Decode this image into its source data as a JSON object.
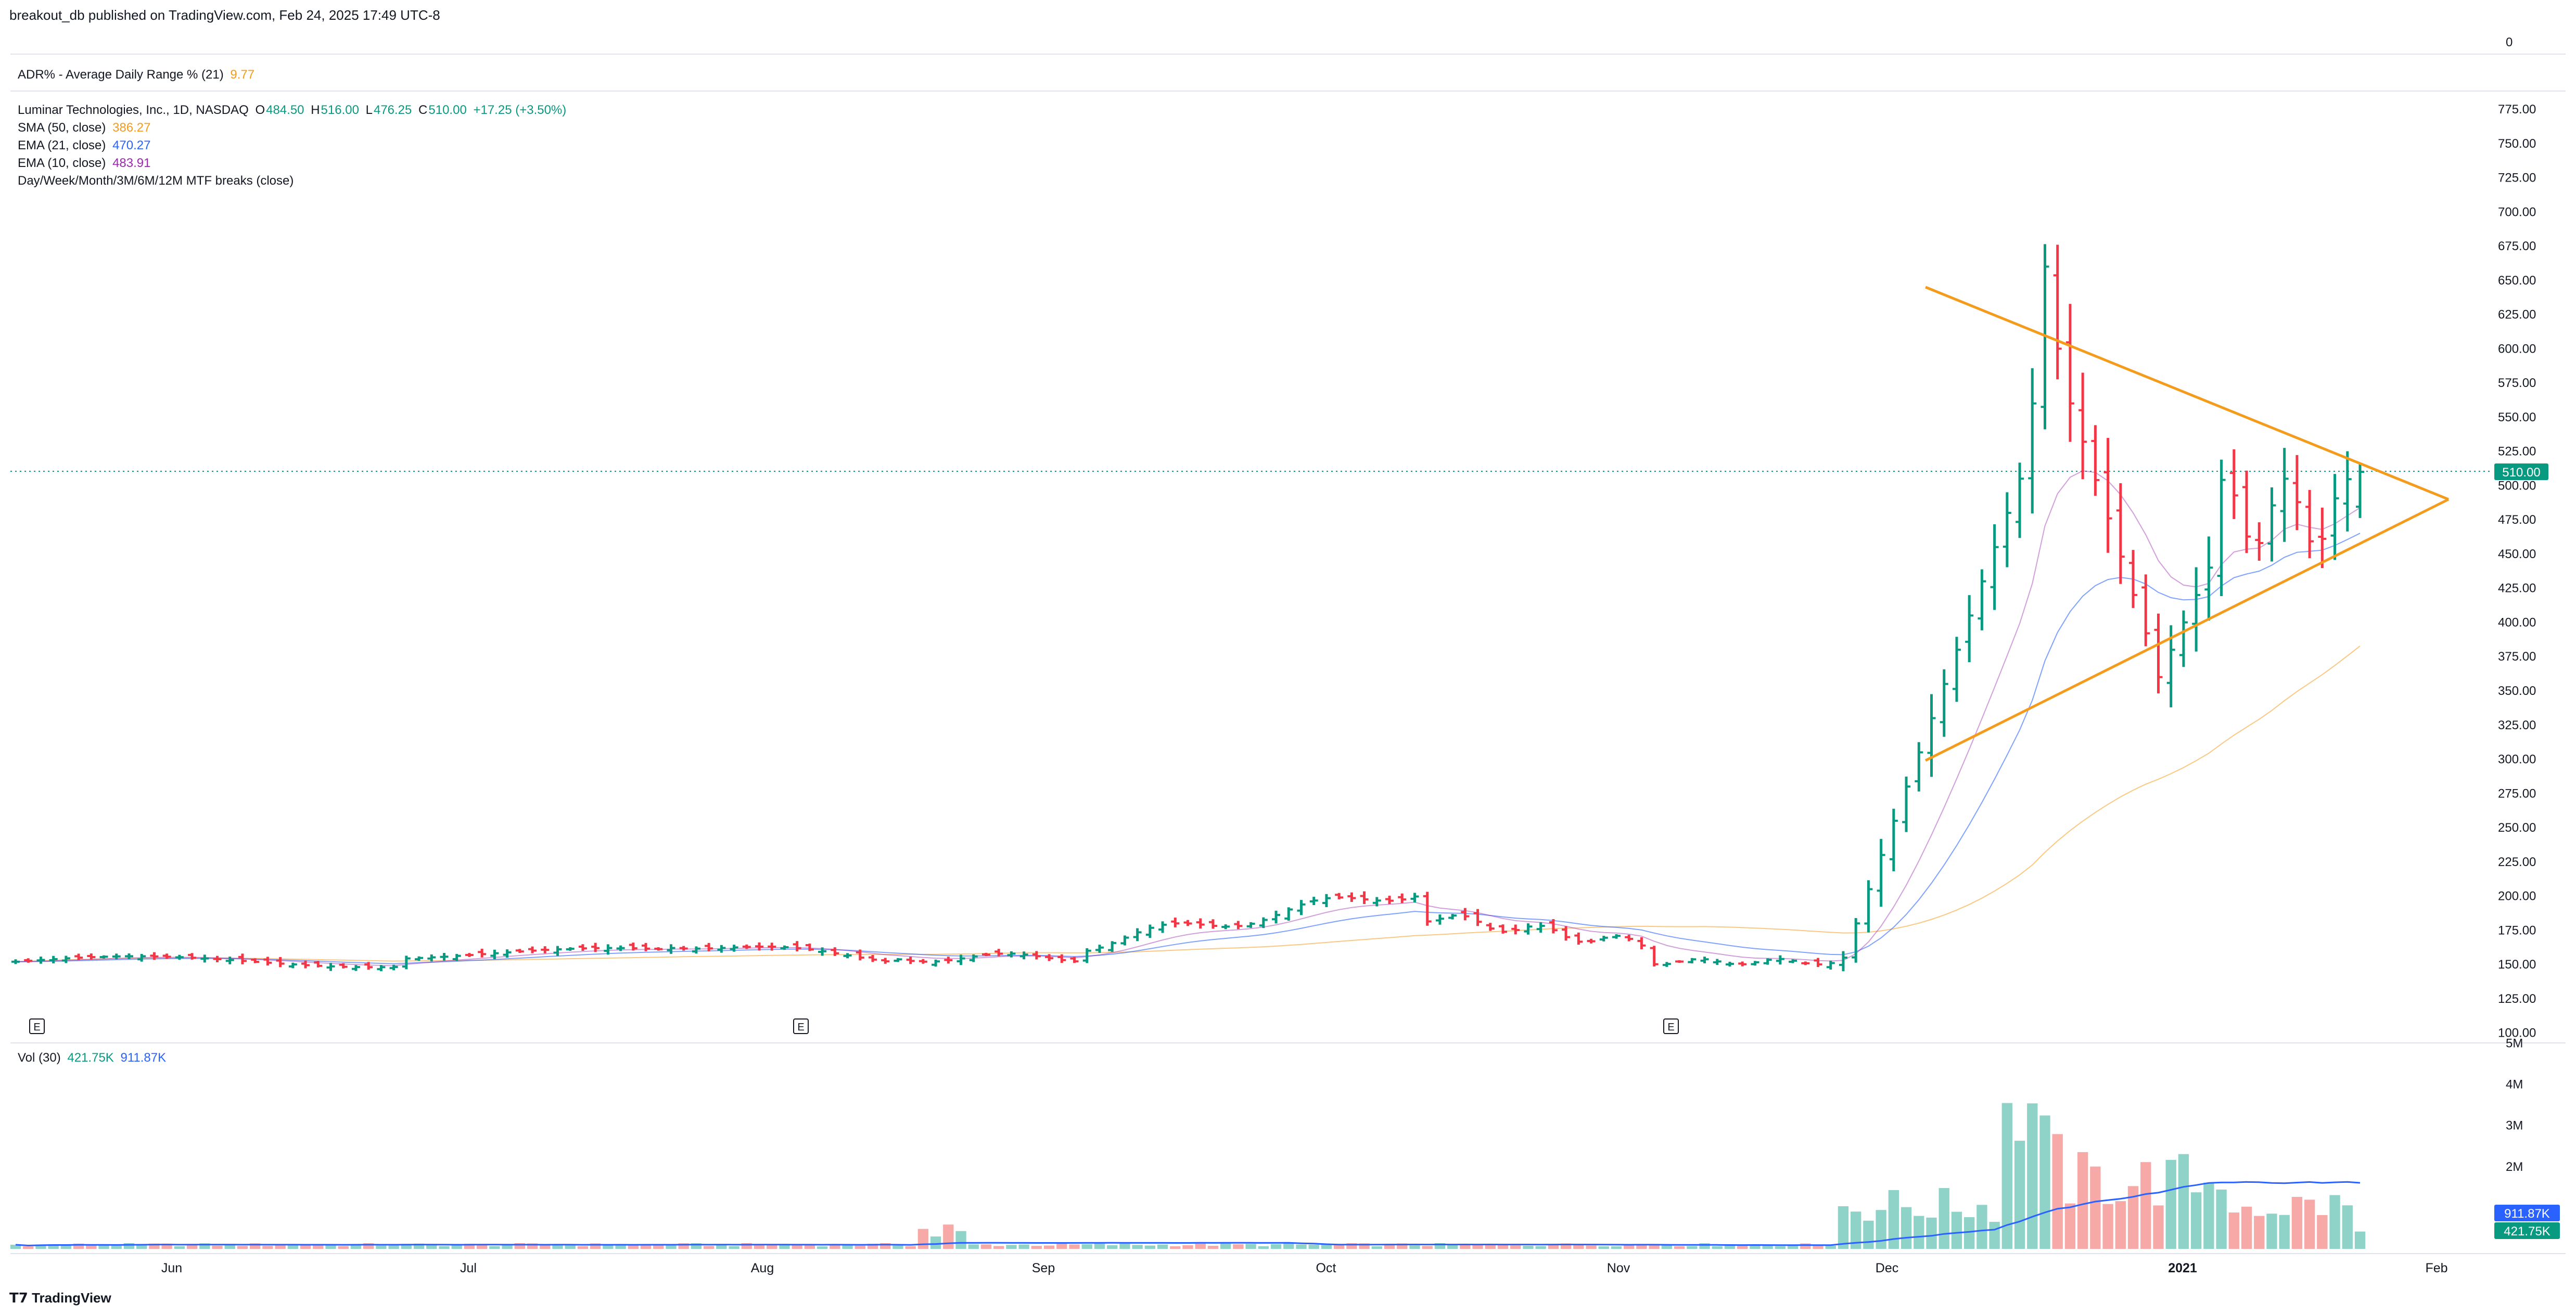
{
  "header": {
    "publisher_line": "breakout_db published on TradingView.com, Feb 24, 2025 17:49 UTC-8"
  },
  "adr_panel": {
    "label": "ADR% - Average Daily Range % (21)",
    "value": "9.77",
    "scale_label": "0"
  },
  "legend": {
    "symbol": "Luminar Technologies, Inc., 1D, NASDAQ",
    "open_label": "O",
    "open": "484.50",
    "high_label": "H",
    "high": "516.00",
    "low_label": "L",
    "low": "476.25",
    "close_label": "C",
    "close": "510.00",
    "change": "+17.25 (+3.50%)",
    "sma_label": "SMA (50, close)",
    "sma_value": "386.27",
    "ema21_label": "EMA (21, close)",
    "ema21_value": "470.27",
    "ema10_label": "EMA (10, close)",
    "ema10_value": "483.91",
    "mtf_label": "Day/Week/Month/3M/6M/12M MTF breaks (close)"
  },
  "volume_legend": {
    "label": "Vol (30)",
    "vol": "421.75K",
    "vol_ma": "911.87K"
  },
  "price_tag": "510.00",
  "vol_tag_ma": "911.87K",
  "vol_tag": "421.75K",
  "earnings_marker": "E",
  "footer": {
    "brand": "TradingView"
  },
  "colors": {
    "up": "#089981",
    "down": "#f23645",
    "sma": "#f59b1b",
    "ema21": "#2962ff",
    "ema10": "#9c27b0",
    "triangle": "#f59b1b",
    "vol_up": "#8fd3c8",
    "vol_down": "#f7a9a7",
    "vol_ma": "#2962ff"
  },
  "chart_data": {
    "type": "ohlc",
    "price_axis": {
      "ticks": [
        "775.00",
        "750.00",
        "725.00",
        "700.00",
        "675.00",
        "650.00",
        "625.00",
        "600.00",
        "575.00",
        "550.00",
        "525.00",
        "500.00",
        "475.00",
        "450.00",
        "425.00",
        "400.00",
        "375.00",
        "350.00",
        "325.00",
        "300.00",
        "275.00",
        "250.00",
        "225.00",
        "200.00",
        "175.00",
        "150.00",
        "125.00",
        "100.00"
      ],
      "range": [
        100,
        775
      ]
    },
    "volume_axis": {
      "ticks": [
        "5M",
        "4M",
        "3M",
        "2M"
      ],
      "range": [
        0,
        5000000
      ]
    },
    "time_axis": {
      "labels": [
        "Jun",
        "Jul",
        "Aug",
        "Sep",
        "Oct",
        "Nov",
        "Dec",
        "2021",
        "Feb"
      ]
    },
    "bars_visible": 187,
    "last_bar": {
      "open": 484.5,
      "high": 516.0,
      "low": 476.25,
      "close": 510.0
    },
    "series": [
      {
        "name": "SMA (50, close)",
        "last": 386.27
      },
      {
        "name": "EMA (21, close)",
        "last": 470.27
      },
      {
        "name": "EMA (10, close)",
        "last": 483.91
      },
      {
        "name": "Vol (30)",
        "last": 911870
      }
    ],
    "annotations": [
      "symmetrical triangle"
    ]
  }
}
